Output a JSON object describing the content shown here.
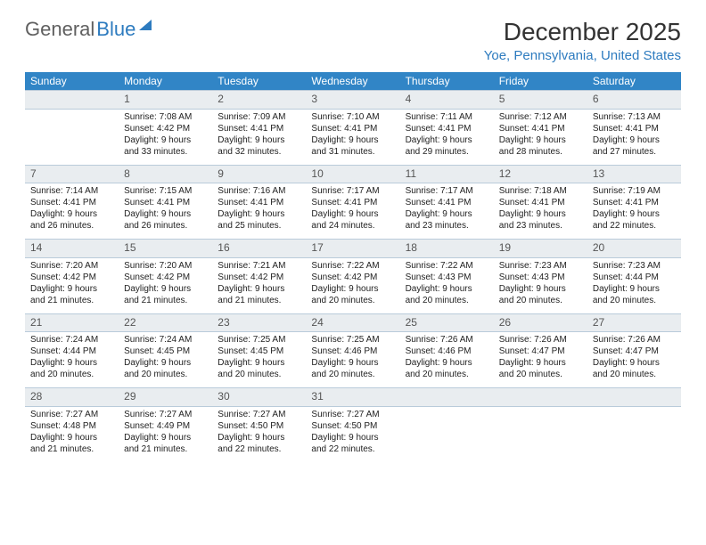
{
  "brand": {
    "part1": "General",
    "part2": "Blue"
  },
  "title": "December 2025",
  "location": "Yoe, Pennsylvania, United States",
  "colors": {
    "header_bg": "#3185c6",
    "header_text": "#ffffff",
    "daynum_bg": "#e9edf0",
    "rule": "#3074a7",
    "accent": "#2d7bbf"
  },
  "day_headers": [
    "Sunday",
    "Monday",
    "Tuesday",
    "Wednesday",
    "Thursday",
    "Friday",
    "Saturday"
  ],
  "weeks": [
    {
      "nums": [
        "",
        "1",
        "2",
        "3",
        "4",
        "5",
        "6"
      ],
      "cells": [
        null,
        {
          "sunrise": "7:08 AM",
          "sunset": "4:42 PM",
          "daylight": "9 hours and 33 minutes."
        },
        {
          "sunrise": "7:09 AM",
          "sunset": "4:41 PM",
          "daylight": "9 hours and 32 minutes."
        },
        {
          "sunrise": "7:10 AM",
          "sunset": "4:41 PM",
          "daylight": "9 hours and 31 minutes."
        },
        {
          "sunrise": "7:11 AM",
          "sunset": "4:41 PM",
          "daylight": "9 hours and 29 minutes."
        },
        {
          "sunrise": "7:12 AM",
          "sunset": "4:41 PM",
          "daylight": "9 hours and 28 minutes."
        },
        {
          "sunrise": "7:13 AM",
          "sunset": "4:41 PM",
          "daylight": "9 hours and 27 minutes."
        }
      ]
    },
    {
      "nums": [
        "7",
        "8",
        "9",
        "10",
        "11",
        "12",
        "13"
      ],
      "cells": [
        {
          "sunrise": "7:14 AM",
          "sunset": "4:41 PM",
          "daylight": "9 hours and 26 minutes."
        },
        {
          "sunrise": "7:15 AM",
          "sunset": "4:41 PM",
          "daylight": "9 hours and 26 minutes."
        },
        {
          "sunrise": "7:16 AM",
          "sunset": "4:41 PM",
          "daylight": "9 hours and 25 minutes."
        },
        {
          "sunrise": "7:17 AM",
          "sunset": "4:41 PM",
          "daylight": "9 hours and 24 minutes."
        },
        {
          "sunrise": "7:17 AM",
          "sunset": "4:41 PM",
          "daylight": "9 hours and 23 minutes."
        },
        {
          "sunrise": "7:18 AM",
          "sunset": "4:41 PM",
          "daylight": "9 hours and 23 minutes."
        },
        {
          "sunrise": "7:19 AM",
          "sunset": "4:41 PM",
          "daylight": "9 hours and 22 minutes."
        }
      ]
    },
    {
      "nums": [
        "14",
        "15",
        "16",
        "17",
        "18",
        "19",
        "20"
      ],
      "cells": [
        {
          "sunrise": "7:20 AM",
          "sunset": "4:42 PM",
          "daylight": "9 hours and 21 minutes."
        },
        {
          "sunrise": "7:20 AM",
          "sunset": "4:42 PM",
          "daylight": "9 hours and 21 minutes."
        },
        {
          "sunrise": "7:21 AM",
          "sunset": "4:42 PM",
          "daylight": "9 hours and 21 minutes."
        },
        {
          "sunrise": "7:22 AM",
          "sunset": "4:42 PM",
          "daylight": "9 hours and 20 minutes."
        },
        {
          "sunrise": "7:22 AM",
          "sunset": "4:43 PM",
          "daylight": "9 hours and 20 minutes."
        },
        {
          "sunrise": "7:23 AM",
          "sunset": "4:43 PM",
          "daylight": "9 hours and 20 minutes."
        },
        {
          "sunrise": "7:23 AM",
          "sunset": "4:44 PM",
          "daylight": "9 hours and 20 minutes."
        }
      ]
    },
    {
      "nums": [
        "21",
        "22",
        "23",
        "24",
        "25",
        "26",
        "27"
      ],
      "cells": [
        {
          "sunrise": "7:24 AM",
          "sunset": "4:44 PM",
          "daylight": "9 hours and 20 minutes."
        },
        {
          "sunrise": "7:24 AM",
          "sunset": "4:45 PM",
          "daylight": "9 hours and 20 minutes."
        },
        {
          "sunrise": "7:25 AM",
          "sunset": "4:45 PM",
          "daylight": "9 hours and 20 minutes."
        },
        {
          "sunrise": "7:25 AM",
          "sunset": "4:46 PM",
          "daylight": "9 hours and 20 minutes."
        },
        {
          "sunrise": "7:26 AM",
          "sunset": "4:46 PM",
          "daylight": "9 hours and 20 minutes."
        },
        {
          "sunrise": "7:26 AM",
          "sunset": "4:47 PM",
          "daylight": "9 hours and 20 minutes."
        },
        {
          "sunrise": "7:26 AM",
          "sunset": "4:47 PM",
          "daylight": "9 hours and 20 minutes."
        }
      ]
    },
    {
      "nums": [
        "28",
        "29",
        "30",
        "31",
        "",
        "",
        ""
      ],
      "cells": [
        {
          "sunrise": "7:27 AM",
          "sunset": "4:48 PM",
          "daylight": "9 hours and 21 minutes."
        },
        {
          "sunrise": "7:27 AM",
          "sunset": "4:49 PM",
          "daylight": "9 hours and 21 minutes."
        },
        {
          "sunrise": "7:27 AM",
          "sunset": "4:50 PM",
          "daylight": "9 hours and 22 minutes."
        },
        {
          "sunrise": "7:27 AM",
          "sunset": "4:50 PM",
          "daylight": "9 hours and 22 minutes."
        },
        null,
        null,
        null
      ]
    }
  ],
  "labels": {
    "sunrise": "Sunrise:",
    "sunset": "Sunset:",
    "daylight": "Daylight:"
  }
}
